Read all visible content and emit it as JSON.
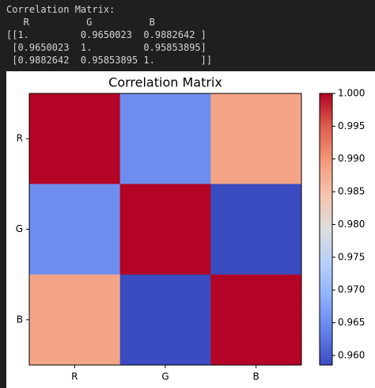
{
  "console": {
    "lines": [
      "Correlation Matrix:",
      "   R          G          B",
      "[[1.         0.9650023  0.9882642 ]",
      " [0.9650023  1.         0.95853895]",
      " [0.9882642  0.95853895 1.        ]]"
    ]
  },
  "chart_data": {
    "type": "heatmap",
    "title": "Correlation Matrix",
    "x_categories": [
      "R",
      "G",
      "B"
    ],
    "y_categories": [
      "R",
      "G",
      "B"
    ],
    "values": [
      [
        1,
        0.9650023,
        0.9882642
      ],
      [
        0.9650023,
        1,
        0.95853895
      ],
      [
        0.9882642,
        0.95853895,
        1
      ]
    ],
    "colormap": "coolwarm",
    "colorbar_lim": [
      0.95853895,
      1
    ],
    "colorbar_ticks": [
      {
        "value": 0.96,
        "label": "0.960"
      },
      {
        "value": 0.965,
        "label": "0.965"
      },
      {
        "value": 0.97,
        "label": "0.970"
      },
      {
        "value": 0.975,
        "label": "0.975"
      },
      {
        "value": 0.98,
        "label": "0.980"
      },
      {
        "value": 0.985,
        "label": "0.985"
      },
      {
        "value": 0.99,
        "label": "0.990"
      },
      {
        "value": 0.995,
        "label": "0.995"
      },
      {
        "value": 1,
        "label": "1.000"
      }
    ]
  }
}
